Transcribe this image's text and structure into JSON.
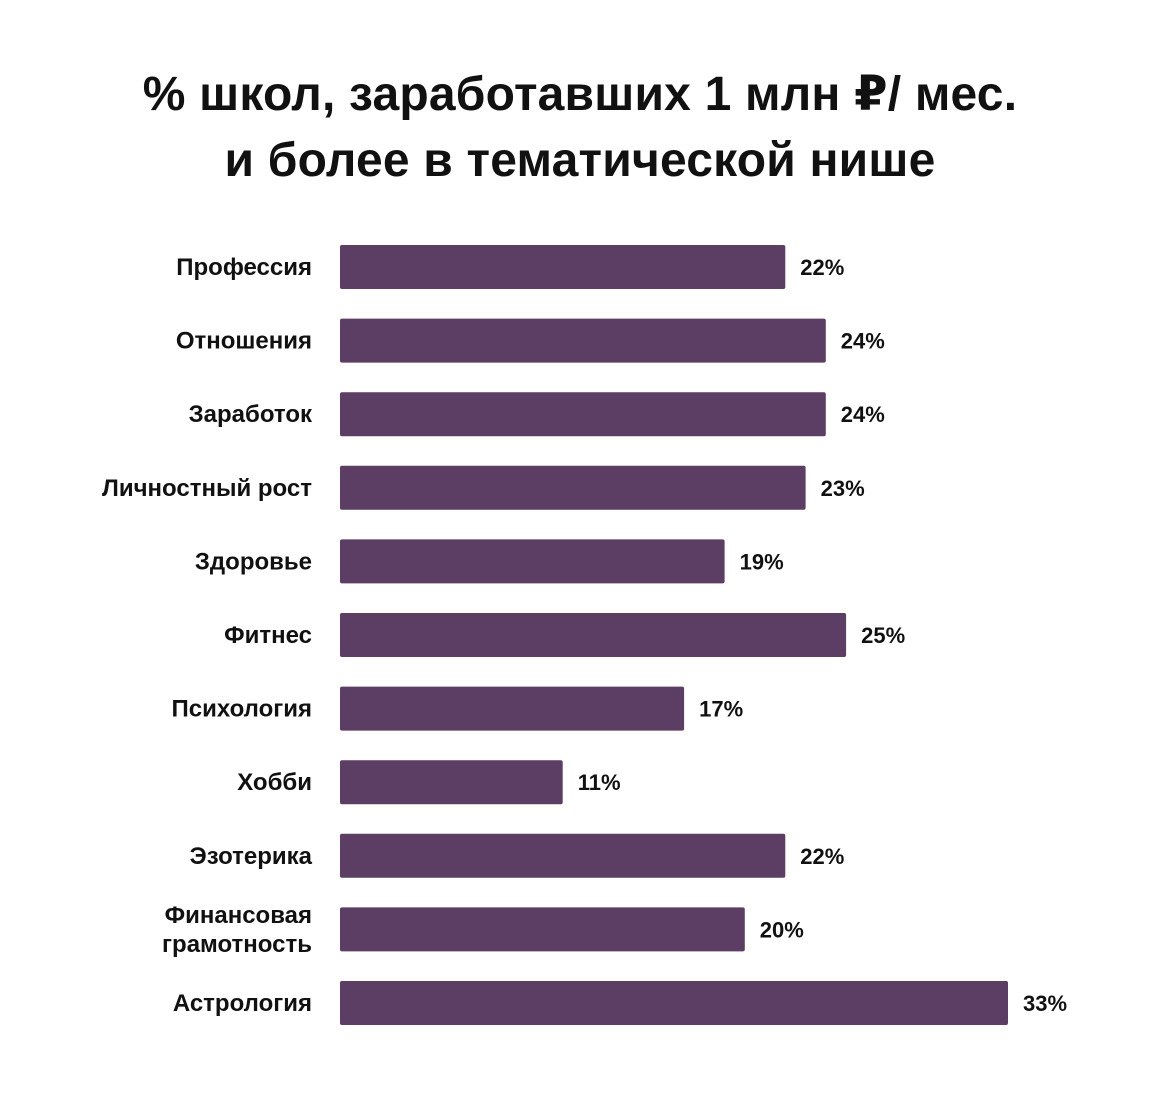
{
  "chart_data": {
    "type": "bar",
    "orientation": "horizontal",
    "title": [
      "% школ, заработавших 1 млн ₽/ мес.",
      "и более в тематической нише"
    ],
    "categories": [
      "Профессия",
      "Отношения",
      "Заработок",
      "Личностный рост",
      "Здоровье",
      "Фитнес",
      "Психология",
      "Хобби",
      "Эзотерика",
      "Финансовая грамотность",
      "Астрология"
    ],
    "category_lines": [
      [
        "Профессия"
      ],
      [
        "Отношения"
      ],
      [
        "Заработок"
      ],
      [
        "Личностный рост"
      ],
      [
        "Здоровье"
      ],
      [
        "Фитнес"
      ],
      [
        "Психология"
      ],
      [
        "Хобби"
      ],
      [
        "Эзотерика"
      ],
      [
        "Финансовая",
        "грамотность"
      ],
      [
        "Астрология"
      ]
    ],
    "values": [
      22,
      24,
      24,
      23,
      19,
      25,
      17,
      11,
      22,
      20,
      33
    ],
    "value_labels": [
      "22%",
      "24%",
      "24%",
      "23%",
      "19%",
      "25%",
      "17%",
      "11%",
      "22%",
      "20%",
      "33%"
    ],
    "xlabel": "",
    "ylabel": "",
    "xlim": [
      0,
      33
    ],
    "grid": false,
    "legend": "none",
    "bar_color": "#5c3d63"
  }
}
